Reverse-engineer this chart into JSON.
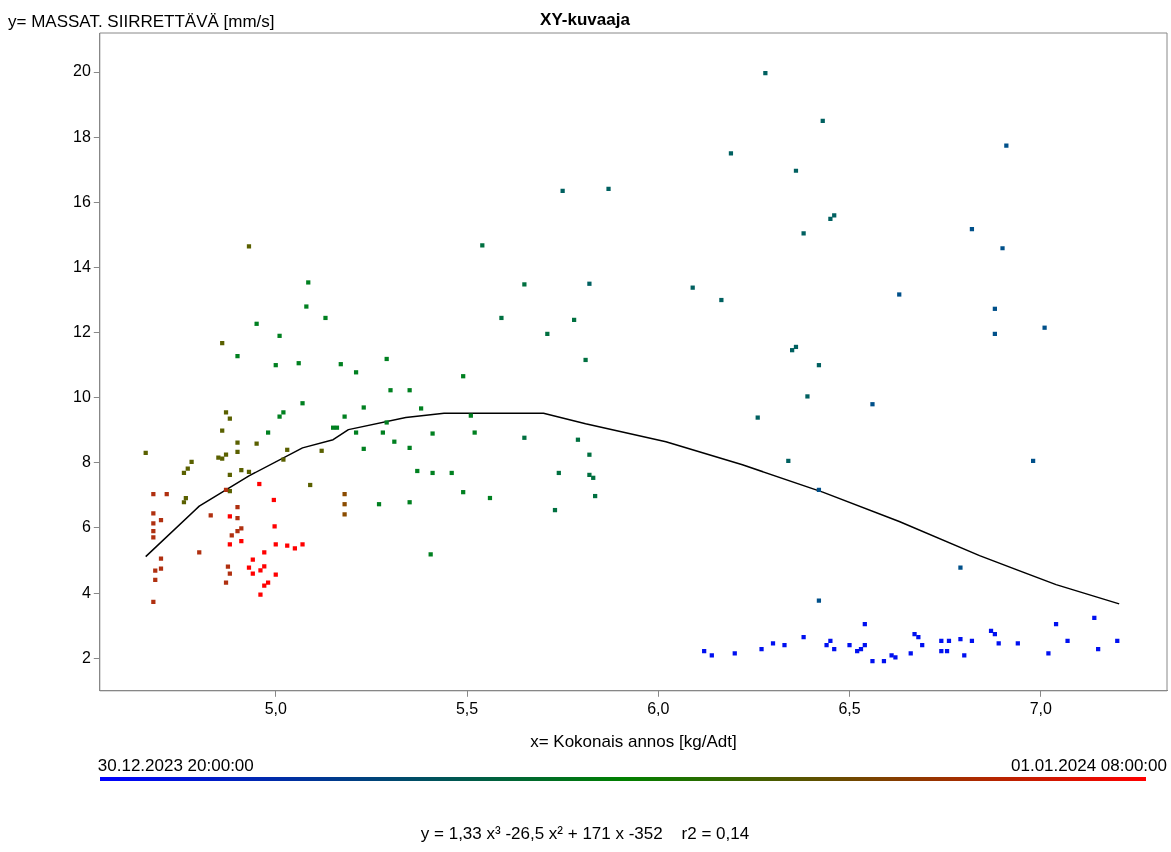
{
  "chart_data": {
    "type": "scatter",
    "title": "XY-kuvaaja",
    "xlabel": "x= Kokonais annos [kg/Adt]",
    "ylabel": "y= MASSAT. SIIRRETTÄVÄ [mm/s]",
    "annotations": [
      "30.12.2023 20:00:00",
      "01.01.2024 08:00:00",
      "y = 1,33 x³ -26,5 x² + 171 x -352    r2 = 0,14"
    ],
    "xlim": [
      4.54,
      7.33
    ],
    "ylim": [
      1.0,
      21.2
    ],
    "xticks": [
      {
        "value": 5,
        "label": "5,0"
      },
      {
        "value": 5.5,
        "label": "5,5"
      },
      {
        "value": 6,
        "label": "6,0"
      },
      {
        "value": 6.5,
        "label": "6,5"
      },
      {
        "value": 7,
        "label": "7,0"
      }
    ],
    "yticks": [
      2,
      4,
      6,
      8,
      10,
      12,
      14,
      16,
      18,
      20
    ],
    "grid": false,
    "legend": false,
    "marker": "square",
    "series": [
      {
        "x": [
          4.957,
          4.995,
          4.997,
          4.88,
          5.0,
          4.97,
          5.03,
          5.05,
          5.07,
          4.94,
          4.93,
          4.96,
          4.97,
          4.98,
          4.97,
          4.96,
          4.94,
          5.0,
          4.88,
          4.91
        ],
        "values": [
          7.35,
          6.86,
          6.05,
          5.5,
          5.5,
          5.25,
          5.46,
          5.37,
          5.5,
          5.03,
          4.78,
          4.7,
          4.82,
          4.32,
          4.23,
          3.95,
          4.6,
          4.57,
          6.36,
          5.6
        ],
        "color": "#ff0000"
      },
      {
        "x": [
          4.68,
          4.68,
          4.68,
          4.68,
          4.68,
          4.7,
          4.685,
          4.685,
          4.68,
          4.715,
          4.7,
          4.7,
          4.8,
          4.83,
          4.875,
          4.88,
          4.87,
          4.87,
          4.9,
          4.9,
          4.885,
          4.9,
          4.91
        ],
        "values": [
          7.04,
          6.45,
          6.14,
          5.9,
          5.71,
          6.24,
          4.41,
          4.69,
          3.73,
          7.04,
          5.06,
          4.75,
          5.25,
          6.39,
          4.81,
          4.6,
          4.32,
          7.17,
          6.64,
          6.3,
          5.77,
          5.9,
          5.99
        ],
        "color": "#b03010"
      },
      {
        "x": [
          5.18,
          5.18,
          5.18
        ],
        "values": [
          7.04,
          6.73,
          6.42
        ],
        "color": "#8b4c00"
      },
      {
        "x": [
          4.66,
          4.77,
          4.78,
          4.76,
          4.765,
          4.76,
          4.87,
          4.87,
          4.88,
          4.86,
          4.9,
          4.9,
          4.85,
          4.86,
          4.88,
          4.88,
          4.95,
          5.02,
          5.09,
          5.12,
          4.93,
          4.91,
          4.86,
          4.93,
          5.03
        ],
        "values": [
          8.31,
          7.82,
          8.03,
          7.69,
          6.92,
          6.79,
          8.25,
          9.55,
          9.36,
          8.99,
          8.34,
          8.62,
          8.16,
          8.13,
          7.63,
          7.13,
          8.59,
          8.1,
          7.32,
          8.37,
          7.72,
          7.78,
          11.68,
          14.65,
          8.4
        ],
        "color": "#5a6000"
      },
      {
        "x": [
          4.95,
          4.9,
          5.01,
          5.0,
          4.98,
          5.01,
          5.02,
          5.085,
          5.08,
          5.13,
          5.06,
          5.07,
          5.17,
          5.21,
          5.29,
          5.15,
          5.16,
          5.18,
          5.23,
          5.21,
          5.23,
          5.3,
          5.35,
          5.29,
          5.31,
          5.28,
          5.35,
          5.27,
          5.35,
          5.38,
          5.41,
          5.37,
          5.41,
          5.46,
          5.49,
          5.49,
          5.51,
          5.52,
          5.56,
          5.405
        ],
        "values": [
          12.27,
          11.28,
          11.9,
          11.0,
          8.93,
          9.42,
          9.55,
          13.54,
          12.8,
          12.45,
          11.06,
          9.83,
          11.03,
          10.78,
          11.19,
          9.08,
          9.08,
          9.42,
          9.7,
          8.93,
          8.43,
          10.23,
          10.23,
          9.24,
          8.65,
          8.93,
          8.46,
          6.73,
          6.79,
          9.67,
          8.9,
          7.75,
          7.69,
          7.69,
          10.66,
          7.1,
          9.45,
          8.93,
          6.92,
          5.19
        ],
        "color": "#008020"
      },
      {
        "x": [
          5.54,
          5.65,
          5.59,
          5.71,
          5.78,
          5.81,
          5.65,
          5.74,
          5.73,
          5.79,
          5.82,
          5.82,
          5.83,
          5.835
        ],
        "values": [
          14.68,
          13.48,
          12.45,
          11.96,
          12.39,
          11.16,
          8.77,
          7.69,
          6.55,
          8.71,
          8.25,
          7.63,
          7.54,
          6.98
        ],
        "color": "#007040"
      },
      {
        "x": [
          5.75,
          5.87,
          5.82,
          6.09,
          6.165,
          6.19,
          6.28,
          6.26,
          6.36,
          6.38,
          6.43,
          6.45,
          6.46,
          6.35,
          6.36,
          6.42,
          6.39,
          6.34
        ],
        "values": [
          16.35,
          16.41,
          13.5,
          13.38,
          13.0,
          17.5,
          19.97,
          9.39,
          16.97,
          15.05,
          18.5,
          15.49,
          15.6,
          11.46,
          11.56,
          11.0,
          10.04,
          8.06
        ],
        "color": "#006060"
      },
      {
        "x": [
          6.56,
          6.42,
          6.42,
          6.63,
          6.82,
          6.9,
          6.91,
          6.88,
          6.88,
          7.01,
          6.98,
          6.79
        ],
        "values": [
          9.8,
          7.17,
          3.77,
          13.17,
          15.18,
          14.59,
          17.74,
          12.73,
          11.96,
          12.15,
          8.06,
          4.78
        ],
        "color": "#00508a"
      },
      {
        "x": [
          6.12,
          6.14,
          6.2,
          6.27,
          6.3,
          6.33,
          6.38,
          6.44,
          6.45,
          6.46,
          6.5,
          6.52,
          6.53,
          6.54,
          6.54,
          6.56,
          6.59,
          6.61,
          6.62,
          6.66,
          6.67,
          6.69,
          6.68,
          6.74,
          6.74,
          6.76,
          6.755,
          6.79,
          6.8,
          6.82,
          6.87,
          6.88,
          6.89,
          6.94,
          7.02,
          7.04,
          7.07,
          7.14,
          7.15,
          7.2
        ],
        "values": [
          2.22,
          2.09,
          2.15,
          2.28,
          2.46,
          2.4,
          2.65,
          2.4,
          2.53,
          2.28,
          2.4,
          2.22,
          2.28,
          2.4,
          3.05,
          1.91,
          1.91,
          2.09,
          2.03,
          2.15,
          2.74,
          2.4,
          2.65,
          2.53,
          2.22,
          2.53,
          2.22,
          2.59,
          2.09,
          2.53,
          2.84,
          2.74,
          2.46,
          2.46,
          2.15,
          3.05,
          2.53,
          3.24,
          2.28,
          2.53
        ],
        "color": "#0010f0"
      },
      {
        "type": "line",
        "marker": "none",
        "color": "#000000",
        "x": [
          4.66,
          4.8,
          4.93,
          5.07,
          5.15,
          5.19,
          5.34,
          5.44,
          5.7,
          5.81,
          6.02,
          6.22,
          6.43,
          6.63,
          6.84,
          7.04,
          7.205
        ],
        "values": [
          5.12,
          6.67,
          7.6,
          8.46,
          8.71,
          9.02,
          9.39,
          9.52,
          9.52,
          9.2,
          8.65,
          7.94,
          7.1,
          6.2,
          5.15,
          4.26,
          3.67
        ]
      }
    ]
  }
}
